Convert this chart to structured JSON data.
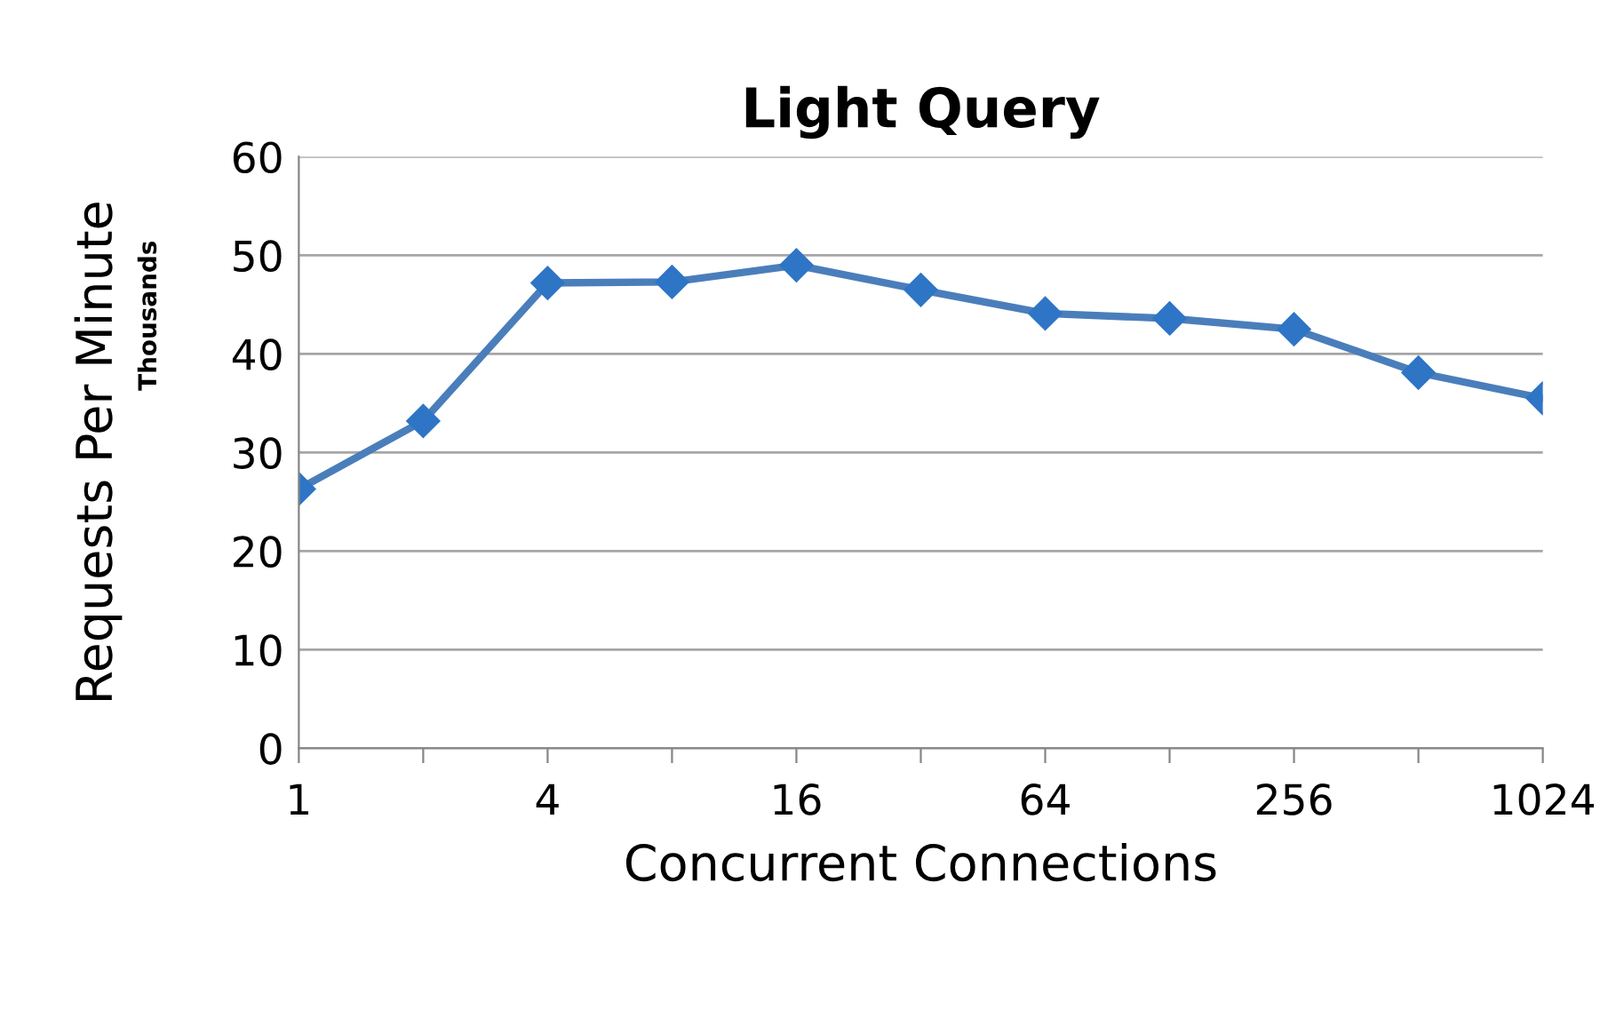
{
  "chart_data": {
    "type": "line",
    "title": "Light Query",
    "xlabel": "Concurrent Connections",
    "ylabel": "Requests Per Minute",
    "annotations": [
      "Thousands"
    ],
    "categories": [
      "1",
      null,
      "4",
      null,
      "16",
      null,
      "64",
      null,
      "256",
      null,
      "1024"
    ],
    "series": [
      {
        "color": "#4a7ebb",
        "values": [
          26.3,
          33.2,
          47.2,
          47.3,
          49.0,
          46.5,
          44.1,
          43.6,
          42.5,
          38.1,
          35.5
        ]
      }
    ],
    "ylim": [
      0,
      60
    ],
    "yticks": [
      0,
      10,
      20,
      30,
      40,
      50,
      60
    ],
    "grid": "y",
    "legend": false,
    "marker": "diamond",
    "line_style": "solid"
  }
}
